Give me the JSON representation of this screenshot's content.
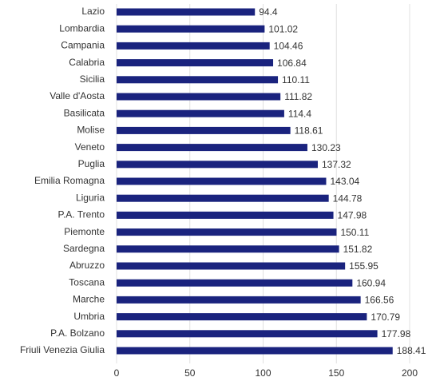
{
  "chart_data": {
    "type": "bar",
    "orientation": "horizontal",
    "categories": [
      "Lazio",
      "Lombardia",
      "Campania",
      "Calabria",
      "Sicilia",
      "Valle d'Aosta",
      "Basilicata",
      "Molise",
      "Veneto",
      "Puglia",
      "Emilia Romagna",
      "Liguria",
      "P.A. Trento",
      "Piemonte",
      "Sardegna",
      "Abruzzo",
      "Toscana",
      "Marche",
      "Umbria",
      "P.A. Bolzano",
      "Friuli Venezia Giulia"
    ],
    "values": [
      94.4,
      101.02,
      104.46,
      106.84,
      110.11,
      111.82,
      114.4,
      118.61,
      130.23,
      137.32,
      143.04,
      144.78,
      147.98,
      150.11,
      151.82,
      155.95,
      160.94,
      166.56,
      170.79,
      177.98,
      188.41
    ],
    "color": "#1a237e",
    "xlim": [
      0,
      200
    ],
    "xticks": [
      0,
      50,
      100,
      150,
      200
    ],
    "grid": true
  }
}
